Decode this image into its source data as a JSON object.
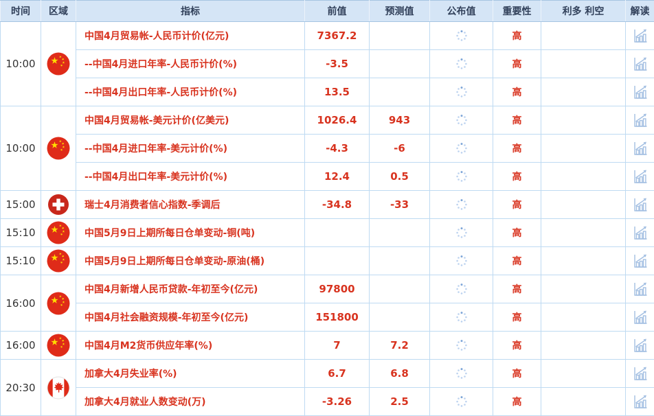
{
  "columns": [
    {
      "key": "time",
      "label": "时间"
    },
    {
      "key": "region",
      "label": "区域"
    },
    {
      "key": "indicator",
      "label": "指标"
    },
    {
      "key": "prev",
      "label": "前值"
    },
    {
      "key": "forecast",
      "label": "预测值"
    },
    {
      "key": "published",
      "label": "公布值"
    },
    {
      "key": "importance",
      "label": "重要性"
    },
    {
      "key": "bias",
      "label": "利多 利空"
    },
    {
      "key": "interpret",
      "label": "解读"
    }
  ],
  "icons": {
    "published_status": "loading-spinner-icon",
    "interpret": "chart-trend-icon",
    "regions": [
      "china-flag",
      "switzerland-flag",
      "canada-flag"
    ]
  },
  "colors": {
    "accent_red": "#d8331f",
    "header_bg": "#d5e5f6",
    "grid_border": "#bedaf2",
    "icon_blue": "#a3bfe2",
    "flag_red": "#df2b19",
    "flag_gold": "#ffde00"
  },
  "groups": [
    {
      "time": "10:00",
      "region": "china-flag",
      "rows": [
        {
          "indicator": "中国4月贸易帐-人民币计价(亿元)",
          "prev": "7367.2",
          "forecast": "",
          "importance": "高",
          "bias": ""
        },
        {
          "indicator": "--中国4月进口年率-人民币计价(%)",
          "prev": "-3.5",
          "forecast": "",
          "importance": "高",
          "bias": ""
        },
        {
          "indicator": "--中国4月出口年率-人民币计价(%)",
          "prev": "13.5",
          "forecast": "",
          "importance": "高",
          "bias": ""
        }
      ]
    },
    {
      "time": "10:00",
      "region": "china-flag",
      "rows": [
        {
          "indicator": "中国4月贸易帐-美元计价(亿美元)",
          "prev": "1026.4",
          "forecast": "943",
          "importance": "高",
          "bias": ""
        },
        {
          "indicator": "--中国4月进口年率-美元计价(%)",
          "prev": "-4.3",
          "forecast": "-6",
          "importance": "高",
          "bias": ""
        },
        {
          "indicator": "--中国4月出口年率-美元计价(%)",
          "prev": "12.4",
          "forecast": "0.5",
          "importance": "高",
          "bias": ""
        }
      ]
    },
    {
      "time": "15:00",
      "region": "switzerland-flag",
      "rows": [
        {
          "indicator": "瑞士4月消费者信心指数-季调后",
          "prev": "-34.8",
          "forecast": "-33",
          "importance": "高",
          "bias": ""
        }
      ]
    },
    {
      "time": "15:10",
      "region": "china-flag",
      "rows": [
        {
          "indicator": "中国5月9日上期所每日仓单变动-铜(吨)",
          "prev": "",
          "forecast": "",
          "importance": "高",
          "bias": ""
        }
      ]
    },
    {
      "time": "15:10",
      "region": "china-flag",
      "rows": [
        {
          "indicator": "中国5月9日上期所每日仓单变动-原油(桶)",
          "prev": "",
          "forecast": "",
          "importance": "高",
          "bias": ""
        }
      ]
    },
    {
      "time": "16:00",
      "region": "china-flag",
      "rows": [
        {
          "indicator": "中国4月新增人民币贷款-年初至今(亿元)",
          "prev": "97800",
          "forecast": "",
          "importance": "高",
          "bias": ""
        },
        {
          "indicator": "中国4月社会融资规模-年初至今(亿元)",
          "prev": "151800",
          "forecast": "",
          "importance": "高",
          "bias": ""
        }
      ]
    },
    {
      "time": "16:00",
      "region": "china-flag",
      "rows": [
        {
          "indicator": "中国4月M2货币供应年率(%)",
          "prev": "7",
          "forecast": "7.2",
          "importance": "高",
          "bias": ""
        }
      ]
    },
    {
      "time": "20:30",
      "region": "canada-flag",
      "rows": [
        {
          "indicator": "加拿大4月失业率(%)",
          "prev": "6.7",
          "forecast": "6.8",
          "importance": "高",
          "bias": ""
        },
        {
          "indicator": "加拿大4月就业人数变动(万)",
          "prev": "-3.26",
          "forecast": "2.5",
          "importance": "高",
          "bias": ""
        }
      ]
    }
  ]
}
